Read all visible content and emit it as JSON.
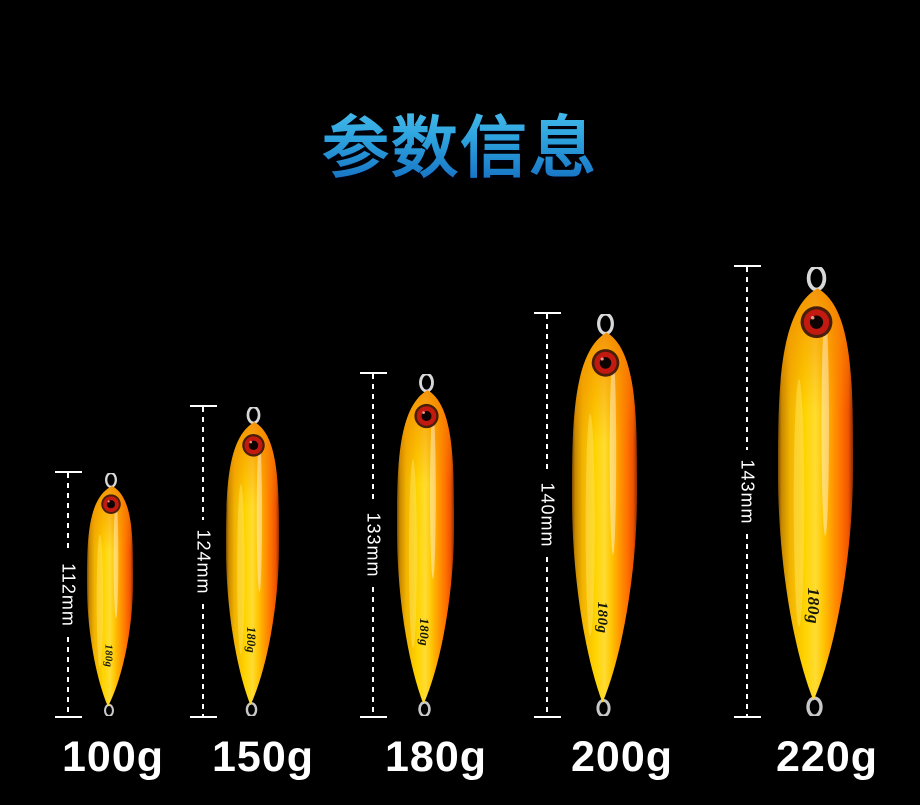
{
  "title": "参数信息",
  "figure": {
    "body_label": "180g",
    "items": [
      {
        "length_label": "112mm",
        "weight_label": "100g"
      },
      {
        "length_label": "124mm",
        "weight_label": "150g"
      },
      {
        "length_label": "133mm",
        "weight_label": "180g"
      },
      {
        "length_label": "140mm",
        "weight_label": "200g"
      },
      {
        "length_label": "143mm",
        "weight_label": "220g"
      }
    ]
  },
  "colors": {
    "background": "#000000",
    "title_gradient_top": "#55C6F0",
    "title_gradient_bottom": "#1168BE",
    "measure_line": "#FFFFFF",
    "weight_label_text": "#FFFFFF",
    "lure_yellow": "#FFD400",
    "lure_orange": "#FF9C00",
    "lure_orange_deep": "#EF5300",
    "eye_ring_red": "#C21A10",
    "eye_pupil": "#0C0302",
    "wire_silver": "#D8D8D8"
  }
}
